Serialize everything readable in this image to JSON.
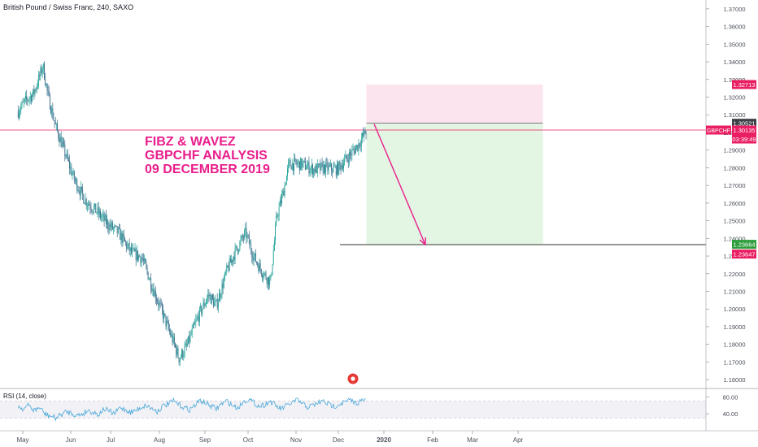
{
  "header": {
    "symbol_line": "British Pound / Swiss Franc, 240, SAXO"
  },
  "annotation": {
    "line1": "FIBZ & WAVEZ",
    "line2": "GBPCHF ANALYSIS",
    "line3": "09 DECEMBER 2019"
  },
  "rsi": {
    "label": "RSI (14, close)"
  },
  "price_labels": {
    "stop": "1.32713",
    "entry": "1.30521",
    "current_symbol": "GBPCHF",
    "current": "1.30135",
    "countdown": "03:39:49",
    "target_a": "1.23664",
    "target_b": "1.23647"
  },
  "colors": {
    "candle": "#26a69a",
    "stop_zone": "#fce4ef",
    "target_zone": "#e3f5e3",
    "annotation": "#e91e8c",
    "arrow": "#e91e8c",
    "rsi_line": "#4aa8d8",
    "pink_label": "#e91e63",
    "green_label": "#2e9e3c"
  },
  "chart_data": {
    "type": "candlestick",
    "title": "British Pound / Swiss Franc, 240, SAXO",
    "xlabel": "",
    "ylabel": "",
    "ylim": [
      1.155,
      1.375
    ],
    "x_ticks": [
      "May",
      "Jun",
      "Jul",
      "Aug",
      "Sep",
      "Oct",
      "Nov",
      "Dec",
      "2020",
      "Feb",
      "Mar",
      "Apr"
    ],
    "y_ticks": [
      "1.16000",
      "1.17000",
      "1.18000",
      "1.19000",
      "1.20000",
      "1.21000",
      "1.22000",
      "1.23000",
      "1.24000",
      "1.25000",
      "1.26000",
      "1.27000",
      "1.28000",
      "1.29000",
      "1.30000",
      "1.31000",
      "1.32000",
      "1.33000",
      "1.34000",
      "1.35000",
      "1.36000",
      "1.37000"
    ],
    "price_path": [
      [
        "2019-04-28",
        1.312
      ],
      [
        "2019-05-03",
        1.318
      ],
      [
        "2019-05-08",
        1.322
      ],
      [
        "2019-05-12",
        1.332
      ],
      [
        "2019-05-14",
        1.338
      ],
      [
        "2019-05-17",
        1.322
      ],
      [
        "2019-05-22",
        1.304
      ],
      [
        "2019-05-28",
        1.289
      ],
      [
        "2019-06-03",
        1.274
      ],
      [
        "2019-06-10",
        1.262
      ],
      [
        "2019-06-18",
        1.255
      ],
      [
        "2019-06-25",
        1.248
      ],
      [
        "2019-07-02",
        1.243
      ],
      [
        "2019-07-10",
        1.232
      ],
      [
        "2019-07-17",
        1.229
      ],
      [
        "2019-07-24",
        1.212
      ],
      [
        "2019-07-31",
        1.196
      ],
      [
        "2019-08-06",
        1.182
      ],
      [
        "2019-08-10",
        1.172
      ],
      [
        "2019-08-15",
        1.179
      ],
      [
        "2019-08-22",
        1.195
      ],
      [
        "2019-08-29",
        1.208
      ],
      [
        "2019-09-03",
        1.202
      ],
      [
        "2019-09-10",
        1.222
      ],
      [
        "2019-09-15",
        1.232
      ],
      [
        "2019-09-22",
        1.243
      ],
      [
        "2019-09-27",
        1.23
      ],
      [
        "2019-10-02",
        1.222
      ],
      [
        "2019-10-08",
        1.215
      ],
      [
        "2019-10-12",
        1.252
      ],
      [
        "2019-10-16",
        1.265
      ],
      [
        "2019-10-20",
        1.282
      ],
      [
        "2019-10-28",
        1.282
      ],
      [
        "2019-11-05",
        1.279
      ],
      [
        "2019-11-12",
        1.28
      ],
      [
        "2019-11-20",
        1.279
      ],
      [
        "2019-11-27",
        1.286
      ],
      [
        "2019-12-03",
        1.292
      ],
      [
        "2019-12-07",
        1.298
      ],
      [
        "2019-12-09",
        1.301
      ]
    ],
    "levels": {
      "stop": 1.32713,
      "entry": 1.30521,
      "current": 1.30135,
      "target": 1.23664,
      "target_line": 1.23647
    },
    "position_dates": {
      "start": "2019-12-09",
      "end": "2020-04-01"
    },
    "rsi": {
      "ylim": [
        0,
        100
      ],
      "ticks": [
        80,
        40
      ],
      "band": [
        30,
        70
      ],
      "values": [
        58,
        52,
        60,
        48,
        55,
        40,
        35,
        30,
        38,
        45,
        42,
        36,
        40,
        48,
        44,
        38,
        52,
        46,
        40,
        55,
        50,
        44,
        48,
        56,
        60,
        52,
        46,
        58,
        64,
        70,
        62,
        55,
        50,
        60,
        72,
        66,
        58,
        52,
        64,
        70,
        60,
        54,
        68,
        75,
        66,
        58,
        62,
        70,
        60,
        52,
        58,
        66,
        72,
        64,
        56,
        60,
        66,
        70,
        62,
        58,
        64,
        68,
        72,
        66,
        70,
        74
      ]
    }
  }
}
